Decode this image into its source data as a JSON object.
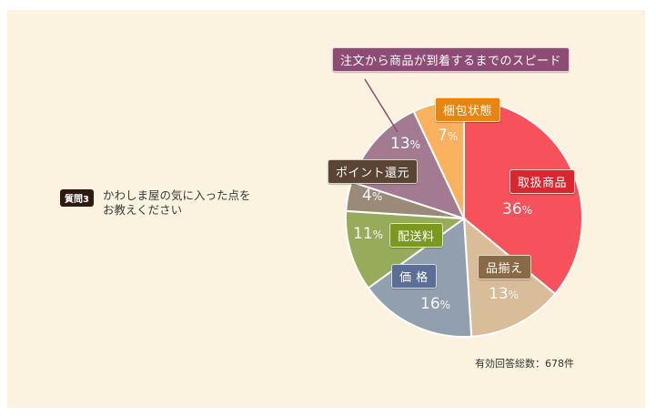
{
  "question": {
    "badge": "質問3",
    "text_line1": "かわしま屋の気に入った点を",
    "text_line2": "お教えください"
  },
  "total": "有効回答総数：678件",
  "chart_data": {
    "type": "pie",
    "title": "かわしま屋の気に入った点をお教えください",
    "categories": [
      "取扱商品",
      "品揃え",
      "価 格",
      "配送料",
      "ポイント還元",
      "注文から商品が到着するまでのスピード",
      "梱包状態"
    ],
    "values": [
      36,
      13,
      16,
      11,
      4,
      13,
      7
    ],
    "unit": "%",
    "colors": [
      "#f7525b",
      "#d9bc98",
      "#929faf",
      "#97ac5a",
      "#9c8a78",
      "#a27b91",
      "#fbb25e"
    ],
    "label_colors": [
      "#d9262f",
      "#8a6a45",
      "#5a6e96",
      "#7a9a1e",
      "#5a4434",
      "#8e4b74",
      "#e8850e"
    ],
    "start_angle": "12 o'clock, clockwise",
    "total_responses": 678
  },
  "labels": {
    "s0": "取扱商品",
    "s1": "品揃え",
    "s2": "価 格",
    "s3": "配送料",
    "s4": "ポイント還元",
    "s5": "注文から商品が到着するまでのスピード",
    "s6": "梱包状態"
  },
  "pcts": {
    "s0": "36",
    "s1": "13",
    "s2": "16",
    "s3": "11",
    "s4": "4",
    "s5": "13",
    "s6": "7"
  },
  "pct_unit": "%"
}
